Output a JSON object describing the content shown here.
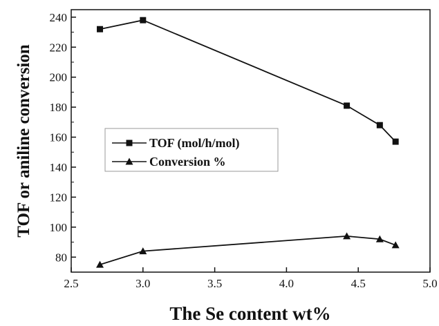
{
  "chart_data": {
    "type": "line",
    "title": "",
    "xlabel": "The Se content  wt%",
    "ylabel": "TOF or aniline conversion",
    "xlim": [
      2.5,
      5.0
    ],
    "ylim": [
      70,
      245
    ],
    "xticks": [
      2.5,
      3.0,
      3.5,
      4.0,
      4.5,
      5.0
    ],
    "xtick_labels": [
      "2.5",
      "3.0",
      "3.5",
      "4.0",
      "4.5",
      "5.0"
    ],
    "yticks": [
      80,
      100,
      120,
      140,
      160,
      180,
      200,
      220,
      240
    ],
    "ytick_labels": [
      "80",
      "100",
      "120",
      "140",
      "160",
      "180",
      "200",
      "220",
      "240"
    ],
    "grid": false,
    "legend_position": "center-left",
    "series": [
      {
        "name": "TOF (mol/h/mol)",
        "marker": "square",
        "color": "#111111",
        "x": [
          2.7,
          3.0,
          4.42,
          4.65,
          4.76
        ],
        "y": [
          232,
          238,
          181,
          168,
          157
        ]
      },
      {
        "name": "Conversion %",
        "marker": "triangle",
        "color": "#111111",
        "x": [
          2.7,
          3.0,
          4.42,
          4.65,
          4.76
        ],
        "y": [
          75,
          84,
          94,
          92,
          88
        ]
      }
    ]
  }
}
